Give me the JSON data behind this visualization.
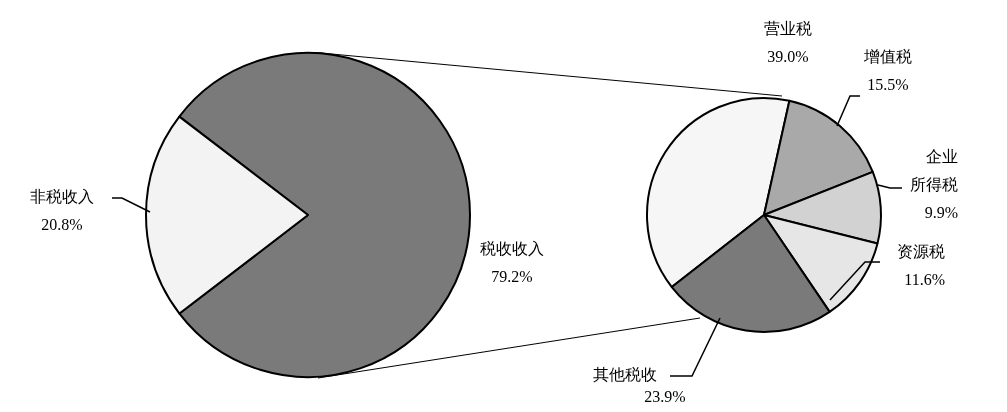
{
  "chart_data": [
    {
      "type": "pie",
      "categories": [
        "税收收入",
        "非税收入"
      ],
      "values": [
        79.2,
        20.8
      ],
      "value_labels": [
        "79.2%",
        "20.8%"
      ],
      "colors": [
        "#7a7a7a",
        "#f3f3f3"
      ],
      "legend": false
    },
    {
      "type": "pie",
      "categories": [
        "营业税",
        "增值税",
        "企业所得税",
        "资源税",
        "其他税收"
      ],
      "values": [
        39.0,
        15.5,
        9.9,
        11.6,
        23.9
      ],
      "value_labels": [
        "39.0%",
        "15.5%",
        "9.9%",
        "11.6%",
        "23.9%"
      ],
      "colors": [
        "#f6f6f6",
        "#a9a9a9",
        "#d2d2d2",
        "#e6e6e6",
        "#7a7a7a"
      ],
      "legend": false
    }
  ]
}
